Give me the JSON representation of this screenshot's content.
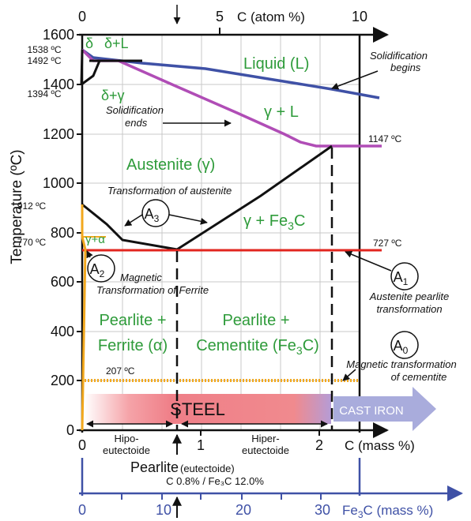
{
  "top_axis": {
    "ticks": [
      "0",
      "5",
      "10"
    ],
    "label": "C (atom %)"
  },
  "y_axis": {
    "label": "Temperature (ºC)",
    "ticks": [
      "1600",
      "1400",
      "1200",
      "1000",
      "800",
      "600",
      "400",
      "200",
      "0"
    ]
  },
  "bottom_axis": {
    "ticks": [
      "0",
      "1",
      "2"
    ],
    "label": "C (mass %)"
  },
  "fe3c_axis": {
    "ticks": [
      "0",
      "10",
      "20",
      "30"
    ],
    "label_main": "Fe",
    "label_sub": "3",
    "label_tail": "C (mass %)"
  },
  "temps": {
    "t1538": "1538 ºC",
    "t1492": "1492 ºC",
    "t1394": "1394 ºC",
    "t912": "912 ºC",
    "t770": "770 ºC",
    "t1147": "1147 ºC",
    "t727": "727 ºC",
    "t207": "207 ºC"
  },
  "phases": {
    "delta": "δ",
    "delta_l": "δ+L",
    "delta_gamma": "δ+γ",
    "liquid": "Liquid (L)",
    "gamma_l": "γ + L",
    "austenite": "Austenite (γ)",
    "gamma_fe3c_main": "γ + Fe",
    "gamma_fe3c_sub": "3",
    "gamma_fe3c_tail": "C",
    "gamma_alpha": "γ+α",
    "pearlite_ferrite_1": "Pearlite +",
    "pearlite_ferrite_2": "Ferrite (α)",
    "pearlite_cementite_1": "Pearlite +",
    "pearlite_cementite_2_main": "Cementite (Fe",
    "pearlite_cementite_2_sub": "3",
    "pearlite_cementite_2_tail": "C)"
  },
  "annotations": {
    "solidification_begins_1": "Solidification",
    "solidification_begins_2": "begins",
    "solidification_ends_1": "Solidification",
    "solidification_ends_2": "ends",
    "transformation_austenite": "Transformation of austenite",
    "magnetic_ferrite_1": "Magnetic",
    "magnetic_ferrite_2": "Transformation of Ferrite",
    "austenite_pearlite_1": "Austenite pearlite",
    "austenite_pearlite_2": "transformation",
    "magnetic_cementite_1": "Magnetic transformation",
    "magnetic_cementite_2": "of cementite"
  },
  "markers": {
    "a3_letter": "A",
    "a3_sub": "3",
    "a2_letter": "A",
    "a2_sub": "2",
    "a1_letter": "A",
    "a1_sub": "1",
    "a0_letter": "A",
    "a0_sub": "0"
  },
  "bands": {
    "steel": "STEEL",
    "cast_iron": "CAST IRON"
  },
  "regions": {
    "hipo_1": "Hipo-",
    "hipo_2": "eutectoide",
    "hiper_1": "Hiper-",
    "hiper_2": "eutectoide"
  },
  "pearlite": {
    "title_main": "Pearlite",
    "title_small": "(eutectoide)",
    "composition": "C 0.8% / Fe₃C 12.0%"
  },
  "colors": {
    "liquidus": "#3f51a6",
    "solidus": "#b04db6",
    "eutectoid": "#e2261f",
    "phase_text": "#2e9b3a",
    "orange": "#f2a81e",
    "fe3c_axis": "#3f51a6"
  }
}
